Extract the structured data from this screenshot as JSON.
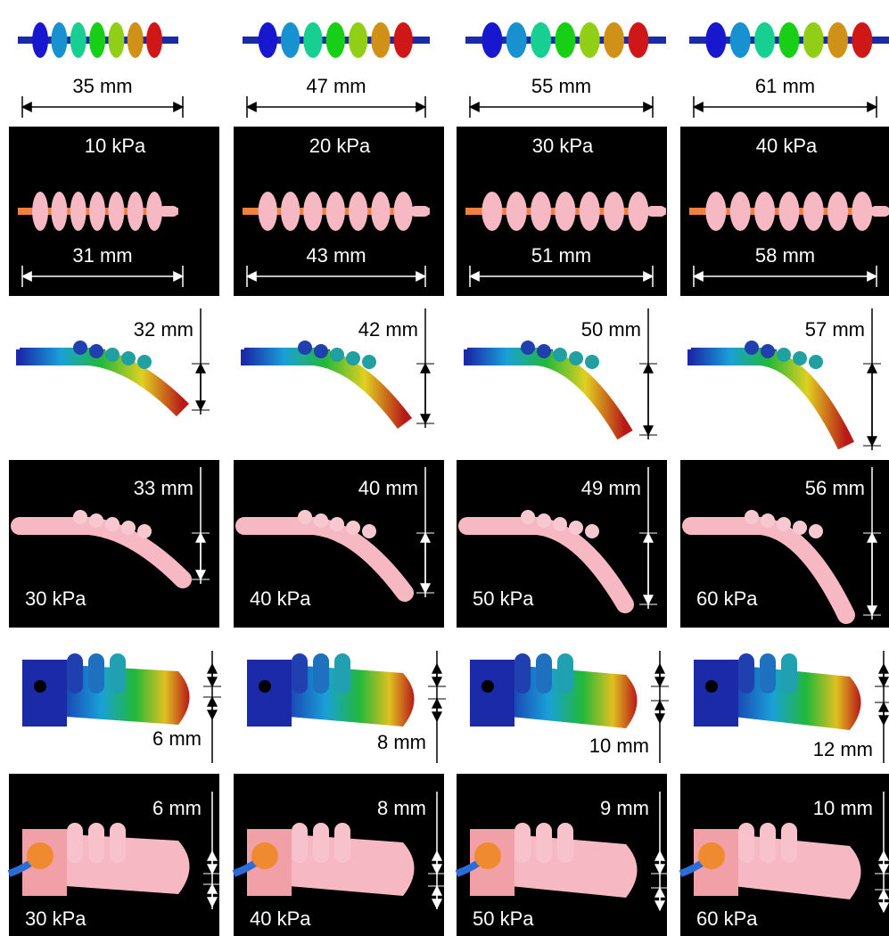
{
  "rows": [
    [
      {
        "length": "35 mm"
      },
      {
        "length": "47 mm"
      },
      {
        "length": "55 mm"
      },
      {
        "length": "61 mm"
      }
    ],
    [
      {
        "pressure": "10 kPa",
        "length": "31 mm"
      },
      {
        "pressure": "20 kPa",
        "length": "43 mm"
      },
      {
        "pressure": "30 kPa",
        "length": "51 mm"
      },
      {
        "pressure": "40 kPa",
        "length": "58 mm"
      }
    ],
    [
      {
        "displacement": "32 mm"
      },
      {
        "displacement": "42 mm"
      },
      {
        "displacement": "50 mm"
      },
      {
        "displacement": "57 mm"
      }
    ],
    [
      {
        "displacement": "33 mm",
        "pressure": "30 kPa"
      },
      {
        "displacement": "40 mm",
        "pressure": "40 kPa"
      },
      {
        "displacement": "49 mm",
        "pressure": "50 kPa"
      },
      {
        "displacement": "56 mm",
        "pressure": "60 kPa"
      }
    ],
    [
      {
        "displacement": "6 mm"
      },
      {
        "displacement": "8 mm"
      },
      {
        "displacement": "10 mm"
      },
      {
        "displacement": "12 mm"
      }
    ],
    [
      {
        "displacement": "6 mm",
        "pressure": "30 kPa"
      },
      {
        "displacement": "8 mm",
        "pressure": "40 kPa"
      },
      {
        "displacement": "9 mm",
        "pressure": "50 kPa"
      },
      {
        "displacement": "10 mm",
        "pressure": "60 kPa"
      }
    ]
  ]
}
